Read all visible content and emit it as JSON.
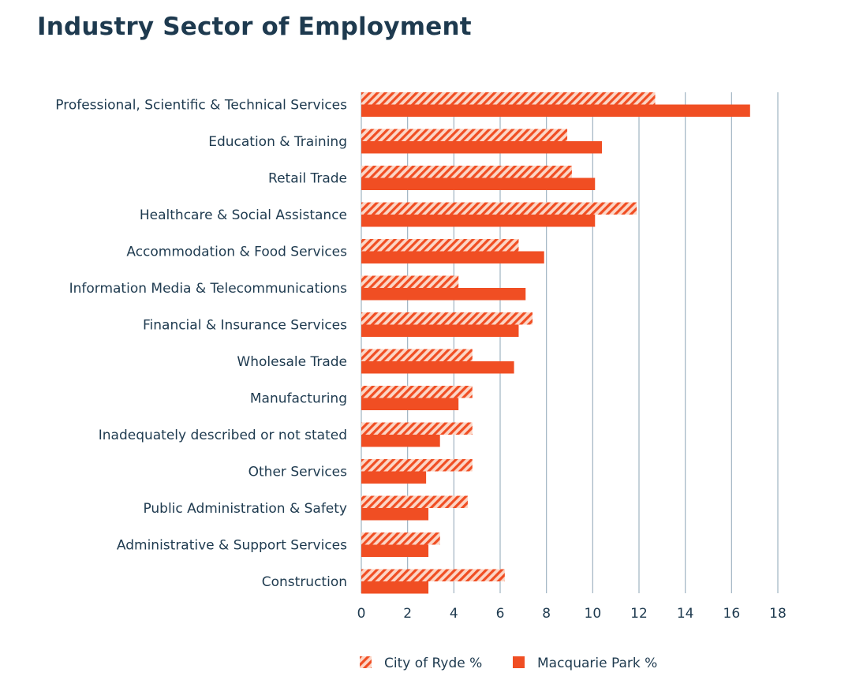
{
  "chart_data": {
    "type": "bar",
    "orientation": "horizontal",
    "title": "Industry Sector of Employment",
    "categories": [
      "Professional, Scientific & Technical Services",
      "Education & Training",
      "Retail Trade",
      "Healthcare & Social Assistance",
      "Accommodation & Food Services",
      "Information Media & Telecommunications",
      "Financial & Insurance Services",
      "Wholesale Trade",
      "Manufacturing",
      "Inadequately described or not stated",
      "Other Services",
      "Public Administration & Safety",
      "Administrative & Support Services",
      "Construction"
    ],
    "series": [
      {
        "name": "City of Ryde %",
        "style": "hatched",
        "values": [
          12.7,
          8.9,
          9.1,
          11.9,
          6.8,
          4.2,
          7.4,
          4.8,
          4.8,
          4.8,
          4.8,
          4.6,
          3.4,
          6.2
        ]
      },
      {
        "name": "Macquarie Park %",
        "style": "solid",
        "values": [
          16.8,
          10.4,
          10.1,
          10.1,
          7.9,
          7.1,
          6.8,
          6.6,
          4.2,
          3.4,
          2.8,
          2.9,
          2.9,
          2.9
        ]
      }
    ],
    "xlim": [
      0,
      18
    ],
    "xticks": [
      "0",
      "2",
      "4",
      "6",
      "8",
      "10",
      "12",
      "14",
      "16",
      "18"
    ],
    "grid": true,
    "legend_position": "bottom-center",
    "colors": {
      "bar": "#f04e23",
      "hatch_bg": "#fcd6c6",
      "grid": "#9fb3c2",
      "text": "#1e3a4f"
    }
  }
}
